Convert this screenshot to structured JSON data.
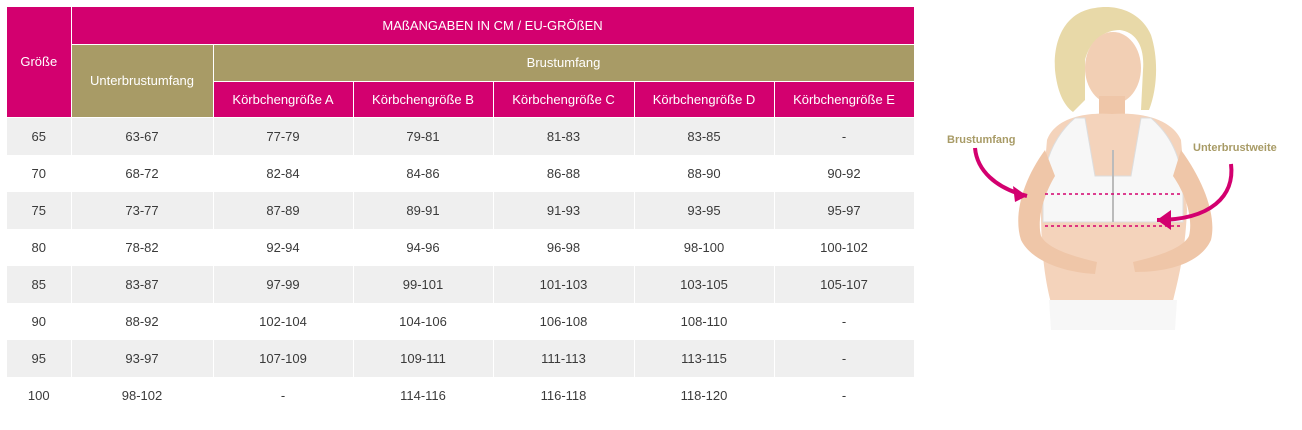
{
  "table": {
    "title": "MAßANGABEN IN CM / EU-GRÖßEN",
    "col_size": "Größe",
    "col_under": "Unterbrustumfang",
    "col_bust": "Brustumfang",
    "cups": [
      "Körbchengröße A",
      "Körbchengröße B",
      "Körbchengröße C",
      "Körbchengröße D",
      "Körbchengröße E"
    ],
    "rows": [
      [
        "65",
        "63-67",
        "77-79",
        "79-81",
        "81-83",
        "83-85",
        "-"
      ],
      [
        "70",
        "68-72",
        "82-84",
        "84-86",
        "86-88",
        "88-90",
        "90-92"
      ],
      [
        "75",
        "73-77",
        "87-89",
        "89-91",
        "91-93",
        "93-95",
        "95-97"
      ],
      [
        "80",
        "78-82",
        "92-94",
        "94-96",
        "96-98",
        "98-100",
        "100-102"
      ],
      [
        "85",
        "83-87",
        "97-99",
        "99-101",
        "101-103",
        "103-105",
        "105-107"
      ],
      [
        "90",
        "88-92",
        "102-104",
        "104-106",
        "106-108",
        "108-110",
        "-"
      ],
      [
        "95",
        "93-97",
        "107-109",
        "109-111",
        "111-113",
        "113-115",
        "-"
      ],
      [
        "100",
        "98-102",
        "-",
        "114-116",
        "116-118",
        "118-120",
        "-"
      ]
    ]
  },
  "illustration": {
    "label_bust": "Brustumfang",
    "label_underbust": "Unterbrustweite",
    "accent_color": "#d3006f",
    "label_color": "#a89b66"
  }
}
